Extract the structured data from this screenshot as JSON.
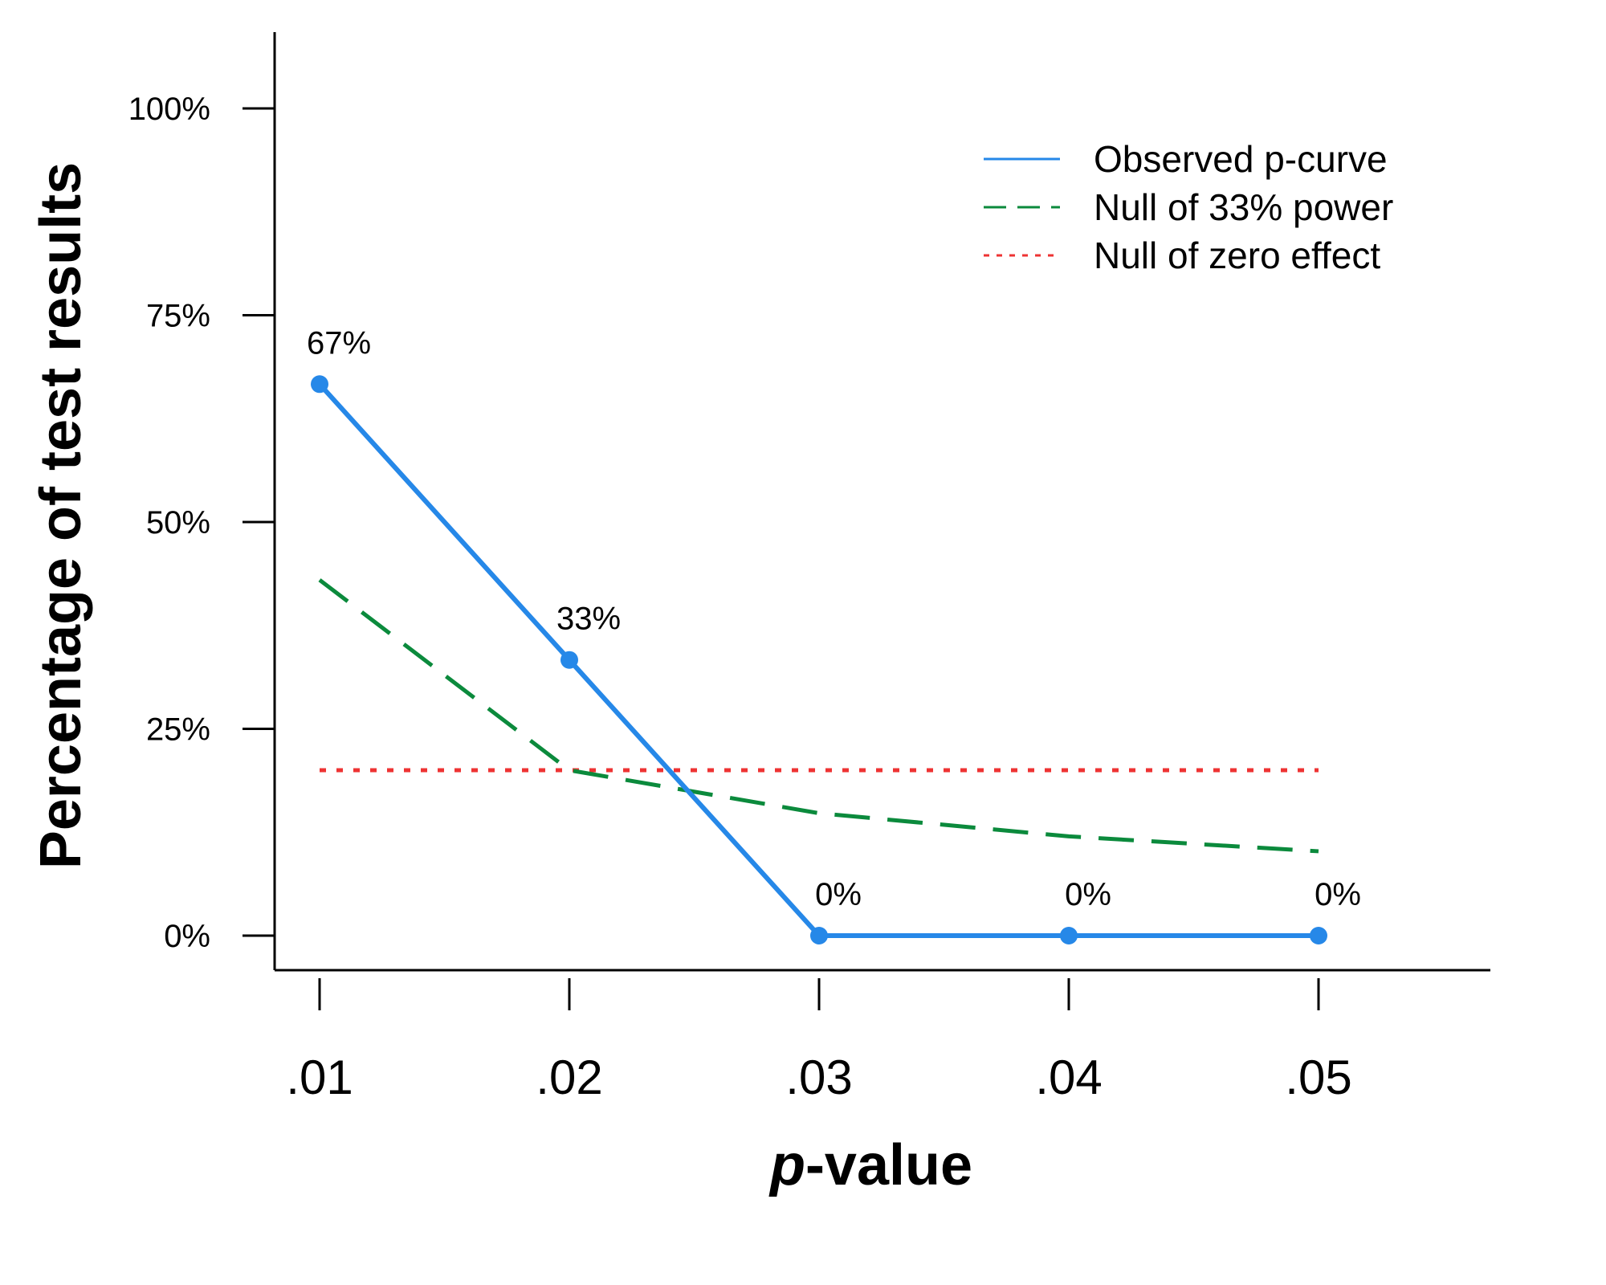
{
  "chart_data": {
    "type": "line",
    "x": [
      0.01,
      0.02,
      0.03,
      0.04,
      0.05
    ],
    "x_tick_labels": [
      ".01",
      ".02",
      ".03",
      ".04",
      ".05"
    ],
    "y_ticks": [
      0,
      25,
      50,
      75,
      100
    ],
    "y_tick_labels": [
      "0%",
      "25%",
      "50%",
      "75%",
      "100%"
    ],
    "ylim": [
      0,
      100
    ],
    "xlabel_italic": "p",
    "xlabel_rest": "-value",
    "ylabel": "Percentage of test results",
    "legend_position": "top-right",
    "grid": false,
    "series": [
      {
        "name": "Observed p-curve",
        "values": [
          66.67,
          33.33,
          0,
          0,
          0
        ],
        "labels": [
          "67%",
          "33%",
          "0%",
          "0%",
          "0%"
        ],
        "color": "#2688E8",
        "style": "solid",
        "markers": true
      },
      {
        "name": "Null of 33% power",
        "values": [
          43.0,
          20.0,
          14.8,
          12.0,
          10.2
        ],
        "color": "#0B8A3C",
        "style": "dashed"
      },
      {
        "name": "Null of zero effect",
        "values": [
          20,
          20,
          20,
          20,
          20
        ],
        "color": "#EE3333",
        "style": "dotted"
      }
    ]
  }
}
